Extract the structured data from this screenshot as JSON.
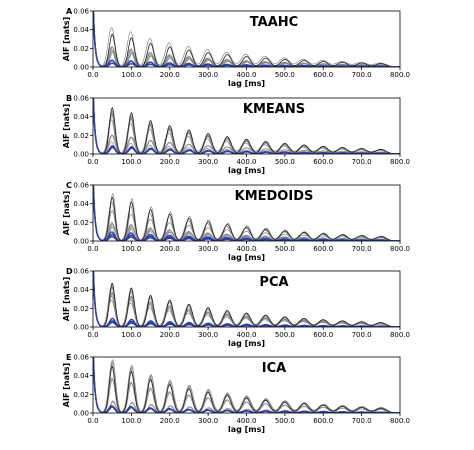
{
  "chart_data": [
    {
      "letter": "A",
      "type": "line",
      "title": "TAAHC",
      "xlabel": "lag [ms]",
      "ylabel": "AIF [nats]",
      "xlim": [
        0,
        800
      ],
      "ylim": [
        0,
        0.06
      ],
      "xticks": [
        0,
        100,
        200,
        300,
        400,
        500,
        600,
        700,
        800
      ],
      "xtick_labels": [
        "0.0",
        "100.0",
        "200.0",
        "300.0",
        "400.0",
        "500.0",
        "600.0",
        "700.0",
        "800.0"
      ],
      "yticks": [
        0,
        0.02,
        0.04,
        0.06
      ],
      "ytick_labels": [
        "0.00",
        "0.02",
        "0.04",
        "0.06"
      ],
      "grid": false,
      "legend": "none",
      "series_summary": {
        "period_ms": 50,
        "grey_peak_max": 0.039,
        "decay": 0.85,
        "grey_count": 7,
        "blue_count": 3,
        "colors": {
          "grey": "#888888",
          "blue": "#2c3fa8"
        }
      }
    },
    {
      "letter": "B",
      "type": "line",
      "title": "KMEANS",
      "xlabel": "lag [ms]",
      "ylabel": "AIF [nats]",
      "xlim": [
        0,
        800
      ],
      "ylim": [
        0,
        0.06
      ],
      "xticks": [
        0,
        100,
        200,
        300,
        400,
        500,
        600,
        700,
        800
      ],
      "xtick_labels": [
        "0.0",
        "100.0",
        "200.0",
        "300.0",
        "400.0",
        "500.0",
        "600.0",
        "700.0",
        "800.0"
      ],
      "yticks": [
        0,
        0.02,
        0.04,
        0.06
      ],
      "ytick_labels": [
        "0.00",
        "0.02",
        "0.04",
        "0.06"
      ],
      "grid": false,
      "legend": "none",
      "series_summary": {
        "period_ms": 50,
        "grey_peak_max": 0.055,
        "decay": 0.85,
        "grey_count": 8,
        "blue_count": 3,
        "colors": {
          "grey": "#888888",
          "blue": "#2c3fa8"
        }
      }
    },
    {
      "letter": "C",
      "type": "line",
      "title": "KMEDOIDS",
      "xlabel": "lag [ms]",
      "ylabel": "AIF [nats]",
      "xlim": [
        0,
        800
      ],
      "ylim": [
        0,
        0.06
      ],
      "xticks": [
        0,
        100,
        200,
        300,
        400,
        500,
        600,
        700,
        800
      ],
      "xtick_labels": [
        "0.0",
        "100.0",
        "200.0",
        "300.0",
        "400.0",
        "500.0",
        "600.0",
        "700.0",
        "800.0"
      ],
      "yticks": [
        0,
        0.02,
        0.04,
        0.06
      ],
      "ytick_labels": [
        "0.00",
        "0.02",
        "0.04",
        "0.06"
      ],
      "grid": false,
      "legend": "none",
      "series_summary": {
        "period_ms": 50,
        "grey_peak_max": 0.052,
        "decay": 0.85,
        "grey_count": 8,
        "blue_count": 3,
        "colors": {
          "grey": "#888888",
          "blue": "#2c3fa8"
        }
      }
    },
    {
      "letter": "D",
      "type": "line",
      "title": "PCA",
      "xlabel": "lag [ms]",
      "ylabel": "AIF [nats]",
      "xlim": [
        0,
        800
      ],
      "ylim": [
        0,
        0.06
      ],
      "xticks": [
        0,
        100,
        200,
        300,
        400,
        500,
        600,
        700,
        800
      ],
      "xtick_labels": [
        "0.0",
        "100.0",
        "200.0",
        "300.0",
        "400.0",
        "500.0",
        "600.0",
        "700.0",
        "800.0"
      ],
      "yticks": [
        0,
        0.02,
        0.04,
        0.06
      ],
      "ytick_labels": [
        "0.00",
        "0.02",
        "0.04",
        "0.06"
      ],
      "grid": false,
      "legend": "none",
      "series_summary": {
        "period_ms": 50,
        "grey_peak_max": 0.052,
        "decay": 0.85,
        "grey_count": 8,
        "blue_count": 3,
        "colors": {
          "grey": "#888888",
          "blue": "#2c3fa8"
        }
      }
    },
    {
      "letter": "E",
      "type": "line",
      "title": "ICA",
      "xlabel": "lag [ms]",
      "ylabel": "AIF [nats]",
      "xlim": [
        0,
        800
      ],
      "ylim": [
        0,
        0.06
      ],
      "xticks": [
        0,
        100,
        200,
        300,
        400,
        500,
        600,
        700,
        800
      ],
      "xtick_labels": [
        "0.0",
        "100.0",
        "200.0",
        "300.0",
        "400.0",
        "500.0",
        "600.0",
        "700.0",
        "800.0"
      ],
      "yticks": [
        0,
        0.02,
        0.04,
        0.06
      ],
      "ytick_labels": [
        "0.00",
        "0.02",
        "0.04",
        "0.06"
      ],
      "grid": false,
      "legend": "none",
      "series_summary": {
        "period_ms": 50,
        "grey_peak_max": 0.055,
        "decay": 0.85,
        "grey_count": 8,
        "blue_count": 3,
        "colors": {
          "grey": "#888888",
          "blue": "#2c3fa8"
        }
      }
    }
  ]
}
